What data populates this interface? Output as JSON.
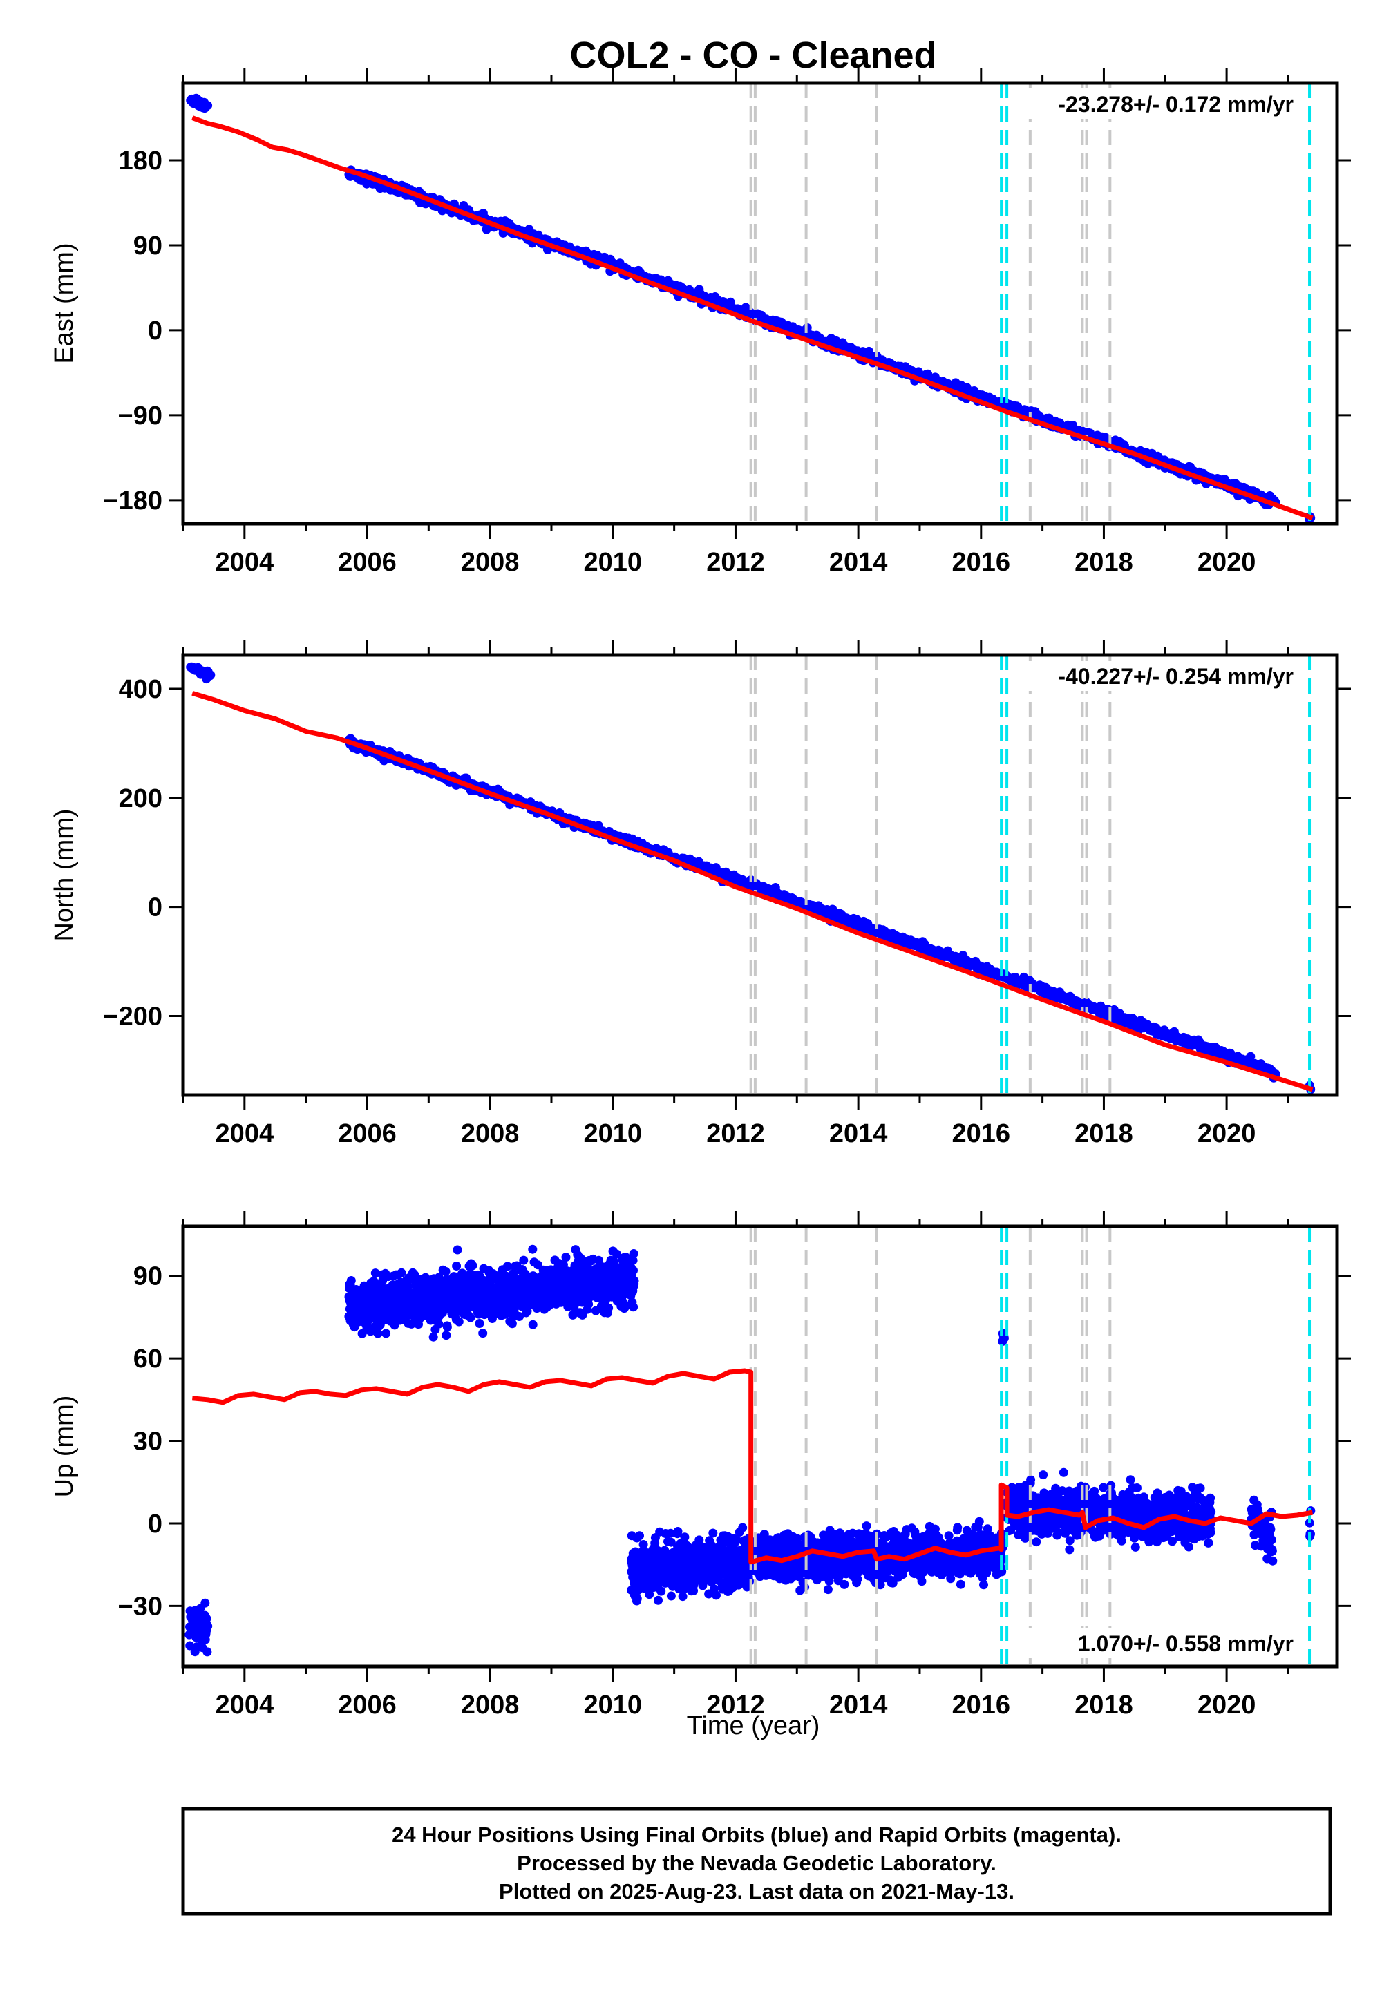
{
  "title": "COL2  - CO - Cleaned",
  "footer_lines": [
    "24 Hour Positions Using Final Orbits (blue) and Rapid Orbits (magenta).",
    "Processed by the Nevada Geodetic Laboratory.",
    "Plotted on 2025-Aug-23. Last data on 2021-May-13."
  ],
  "x_axis_label": "Time (year)",
  "colors": {
    "data": "#0000ff",
    "model": "#ff0000",
    "equipment_change": "#c8c8c8",
    "earthquake": "#00e5ee"
  },
  "chart_data": [
    {
      "type": "scatter",
      "component": "East",
      "ylabel": "East (mm)",
      "rate_label": "-23.278+/- 0.172 mm/yr",
      "xlim": [
        2003.0,
        2021.8
      ],
      "ylim": [
        -205,
        262
      ],
      "xticks": [
        2004,
        2006,
        2008,
        2010,
        2012,
        2014,
        2016,
        2018,
        2020
      ],
      "yticks": [
        180,
        90,
        0,
        -90,
        -180
      ],
      "ytick_labels": [
        "180",
        "90",
        "0",
        "−90",
        "−180"
      ],
      "gray_dashed_lines": [
        2012.25,
        2012.32,
        2013.15,
        2014.3,
        2016.8,
        2017.65,
        2017.72,
        2018.1
      ],
      "cyan_dashed_lines": [
        2016.33,
        2016.42,
        2021.35
      ],
      "model": {
        "x": [
          2003.15,
          2003.4,
          2003.6,
          2003.9,
          2004.2,
          2004.45,
          2004.7,
          2004.95,
          2005.25,
          2005.55,
          2005.9,
          2006.5,
          2007.5,
          2008.5,
          2009.5,
          2010.5,
          2011.5,
          2012.3,
          2013.5,
          2014.5,
          2015.5,
          2016.4,
          2017.5,
          2018.5,
          2019.5,
          2020.5,
          2021.4
        ],
        "y": [
          225,
          219,
          216,
          210,
          202,
          194,
          191,
          186,
          179,
          172,
          165,
          151,
          126,
          101,
          78,
          53,
          29,
          9,
          -18,
          -40,
          -64,
          -86,
          -110,
          -131,
          -155,
          -178,
          -199
        ]
      },
      "obs_segments": [
        {
          "x0": 2003.12,
          "x1": 2003.4,
          "y0": 246,
          "y1": 236,
          "noise": 2.5,
          "n": 25
        },
        {
          "x0": 2005.7,
          "x1": 2020.8,
          "y0": 168,
          "y1": -183,
          "noise": 2.6,
          "n": 1400
        },
        {
          "x0": 2021.35,
          "x1": 2021.37,
          "y0": -196,
          "y1": -197,
          "noise": 1.5,
          "n": 4
        }
      ]
    },
    {
      "type": "scatter",
      "component": "North",
      "ylabel": "North (mm)",
      "rate_label": "-40.227+/- 0.254 mm/yr",
      "xlim": [
        2003.0,
        2021.8
      ],
      "ylim": [
        -345,
        462
      ],
      "xticks": [
        2004,
        2006,
        2008,
        2010,
        2012,
        2014,
        2016,
        2018,
        2020
      ],
      "yticks": [
        400,
        200,
        0,
        -200
      ],
      "ytick_labels": [
        "400",
        "200",
        "0",
        "−200"
      ],
      "gray_dashed_lines": [
        2012.25,
        2012.32,
        2013.15,
        2014.3,
        2016.8,
        2017.65,
        2017.72,
        2018.1
      ],
      "cyan_dashed_lines": [
        2016.33,
        2016.42,
        2021.35
      ],
      "model": {
        "x": [
          2003.15,
          2003.5,
          2004.0,
          2004.5,
          2005.0,
          2005.5,
          2005.9,
          2007.0,
          2008.0,
          2009.0,
          2010.0,
          2011.0,
          2012.0,
          2013.0,
          2014.0,
          2015.0,
          2016.0,
          2017.0,
          2018.0,
          2019.0,
          2020.0,
          2021.4
        ],
        "y": [
          392,
          380,
          360,
          345,
          322,
          310,
          295,
          250,
          208,
          168,
          125,
          85,
          37,
          -3,
          -48,
          -88,
          -128,
          -170,
          -210,
          -253,
          -285,
          -335
        ]
      },
      "obs_segments": [
        {
          "x0": 2003.12,
          "x1": 2003.45,
          "y0": 440,
          "y1": 425,
          "noise": 3.0,
          "n": 25
        },
        {
          "x0": 2005.7,
          "x1": 2020.8,
          "y0": 303,
          "y1": -305,
          "noise": 4.0,
          "n": 1400
        },
        {
          "x0": 2021.35,
          "x1": 2021.37,
          "y0": -330,
          "y1": -332,
          "noise": 2.0,
          "n": 4
        }
      ]
    },
    {
      "type": "scatter",
      "component": "Up",
      "ylabel": "Up (mm)",
      "rate_label": "1.070+/- 0.558 mm/yr",
      "xlim": [
        2003.0,
        2021.8
      ],
      "ylim": [
        -52,
        108
      ],
      "xticks": [
        2004,
        2006,
        2008,
        2010,
        2012,
        2014,
        2016,
        2018,
        2020
      ],
      "yticks": [
        90,
        60,
        30,
        0,
        -30
      ],
      "ytick_labels": [
        "90",
        "60",
        "30",
        "0",
        "−30"
      ],
      "gray_dashed_lines": [
        2012.25,
        2012.32,
        2013.15,
        2014.3,
        2016.8,
        2017.65,
        2017.72,
        2018.1
      ],
      "cyan_dashed_lines": [
        2016.33,
        2016.42,
        2021.35
      ],
      "model": {
        "x": [
          2003.15,
          2003.4,
          2003.65,
          2003.9,
          2004.15,
          2004.4,
          2004.65,
          2004.9,
          2005.15,
          2005.4,
          2005.65,
          2005.9,
          2006.15,
          2006.4,
          2006.65,
          2006.9,
          2007.15,
          2007.4,
          2007.65,
          2007.9,
          2008.15,
          2008.4,
          2008.65,
          2008.9,
          2009.15,
          2009.4,
          2009.65,
          2009.9,
          2010.15,
          2010.4,
          2010.65,
          2010.9,
          2011.15,
          2011.4,
          2011.65,
          2011.9,
          2012.15,
          2012.25,
          2012.25,
          2012.5,
          2012.75,
          2013.0,
          2013.25,
          2013.5,
          2013.75,
          2014.0,
          2014.25,
          2014.3,
          2014.5,
          2014.75,
          2015.0,
          2015.25,
          2015.5,
          2015.75,
          2016.0,
          2016.3,
          2016.33,
          2016.33,
          2016.42,
          2016.42,
          2016.6,
          2016.85,
          2017.1,
          2017.35,
          2017.6,
          2017.65,
          2017.7,
          2017.9,
          2018.15,
          2018.4,
          2018.65,
          2018.9,
          2019.15,
          2019.4,
          2019.65,
          2019.9,
          2020.15,
          2020.4,
          2020.65,
          2020.9,
          2021.15,
          2021.4
        ],
        "y": [
          45.5,
          45.0,
          44.0,
          46.5,
          47.0,
          46.0,
          45.0,
          47.5,
          48.0,
          47.0,
          46.5,
          48.5,
          49.0,
          48.0,
          47.0,
          49.5,
          50.5,
          49.5,
          48.0,
          50.5,
          51.5,
          50.5,
          49.5,
          51.5,
          52.0,
          51.0,
          50.0,
          52.5,
          53.0,
          52.0,
          51.0,
          53.5,
          54.5,
          53.5,
          52.5,
          55.0,
          55.5,
          55.0,
          -14.0,
          -12.5,
          -13.5,
          -12.0,
          -10.0,
          -11.0,
          -12.0,
          -10.5,
          -10.0,
          -13.0,
          -12.0,
          -13.0,
          -11.0,
          -9.0,
          -10.5,
          -11.5,
          -10.0,
          -9.0,
          -9.5,
          14.0,
          13.0,
          3.0,
          2.5,
          4.0,
          5.0,
          4.0,
          3.0,
          4.0,
          -1.5,
          1.0,
          2.0,
          0.0,
          -1.5,
          1.5,
          2.5,
          1.0,
          0.0,
          2.0,
          1.0,
          0.0,
          3.5,
          2.5,
          3.0,
          4.0
        ]
      },
      "obs_segments": [
        {
          "x0": 2003.1,
          "x1": 2003.4,
          "y0": -38,
          "y1": -38,
          "noise": 4.0,
          "n": 60
        },
        {
          "x0": 2005.7,
          "x1": 2010.35,
          "y0": 79,
          "y1": 88,
          "noise": 4.5,
          "n": 1400
        },
        {
          "x0": 2010.3,
          "x1": 2012.25,
          "y0": -16,
          "y1": -14,
          "noise": 4.5,
          "n": 600
        },
        {
          "x0": 2012.25,
          "x1": 2016.35,
          "y0": -13,
          "y1": -11,
          "noise": 4.0,
          "n": 1300
        },
        {
          "x0": 2016.35,
          "x1": 2016.38,
          "y0": 66,
          "y1": 68,
          "noise": 1.5,
          "n": 5
        },
        {
          "x0": 2016.42,
          "x1": 2019.75,
          "y0": 5,
          "y1": 2,
          "noise": 4.0,
          "n": 1100
        },
        {
          "x0": 2020.4,
          "x1": 2020.75,
          "y0": 2,
          "y1": -8,
          "noise": 4.0,
          "n": 70
        },
        {
          "x0": 2021.35,
          "x1": 2021.37,
          "y0": 2,
          "y1": 3,
          "noise": 4.0,
          "n": 5
        }
      ]
    }
  ]
}
